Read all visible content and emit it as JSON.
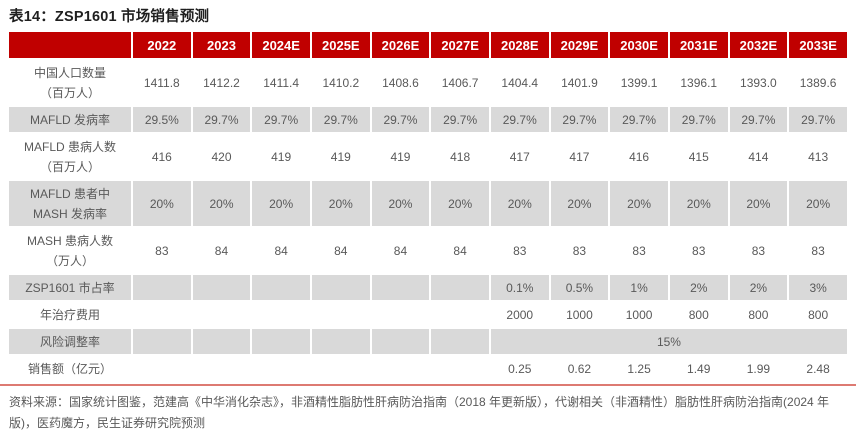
{
  "title": "表14：ZSP1601 市场销售预测",
  "colors": {
    "header_bg": "#c00000",
    "band_bg": "#d9d9d9",
    "cell_text": "#595959",
    "title_text": "#1f1f1f",
    "bottom_rule": "#dd7a72"
  },
  "chart_data": {
    "type": "table",
    "title": "表14：ZSP1601 市场销售预测",
    "categories": [
      "2022",
      "2023",
      "2024E",
      "2025E",
      "2026E",
      "2027E",
      "2028E",
      "2029E",
      "2030E",
      "2031E",
      "2032E",
      "2033E"
    ],
    "series": [
      {
        "name": "中国人口数量（百万人）",
        "values": [
          1411.8,
          1412.2,
          1411.4,
          1410.2,
          1408.6,
          1406.7,
          1404.4,
          1401.9,
          1399.1,
          1396.1,
          1393.0,
          1389.6
        ]
      },
      {
        "name": "MAFLD 发病率",
        "values": [
          "29.5%",
          "29.7%",
          "29.7%",
          "29.7%",
          "29.7%",
          "29.7%",
          "29.7%",
          "29.7%",
          "29.7%",
          "29.7%",
          "29.7%",
          "29.7%"
        ]
      },
      {
        "name": "MAFLD 患病人数（百万人）",
        "values": [
          416,
          420,
          419,
          419,
          419,
          418,
          417,
          417,
          416,
          415,
          414,
          413
        ]
      },
      {
        "name": "MAFLD 患者中 MASH 发病率",
        "values": [
          "20%",
          "20%",
          "20%",
          "20%",
          "20%",
          "20%",
          "20%",
          "20%",
          "20%",
          "20%",
          "20%",
          "20%"
        ]
      },
      {
        "name": "MASH 患病人数（万人）",
        "values": [
          83,
          84,
          84,
          84,
          84,
          84,
          83,
          83,
          83,
          83,
          83,
          83
        ]
      },
      {
        "name": "ZSP1601 市占率",
        "values": [
          "",
          "",
          "",
          "",
          "",
          "",
          "0.1%",
          "0.5%",
          "1%",
          "2%",
          "2%",
          "3%"
        ]
      },
      {
        "name": "年治疗费用",
        "values": [
          "",
          "",
          "",
          "",
          "",
          "",
          2000,
          1000,
          1000,
          800,
          800,
          800
        ]
      },
      {
        "name": "风险调整率",
        "values": [
          "",
          "",
          "",
          "",
          "",
          "",
          "15%",
          "15%",
          "15%",
          "15%",
          "15%",
          "15%"
        ]
      },
      {
        "name": "销售额（亿元）",
        "values": [
          "",
          "",
          "",
          "",
          "",
          "",
          0.25,
          0.62,
          1.25,
          1.49,
          1.99,
          2.48
        ]
      }
    ]
  },
  "table": {
    "corner_label": "",
    "years": [
      "2022",
      "2023",
      "2024E",
      "2025E",
      "2026E",
      "2027E",
      "2028E",
      "2029E",
      "2030E",
      "2031E",
      "2032E",
      "2033E"
    ],
    "rows": [
      {
        "label_lines": [
          "中国人口数量",
          "（百万人）"
        ],
        "band": false,
        "values": [
          "1411.8",
          "1412.2",
          "1411.4",
          "1410.2",
          "1408.6",
          "1406.7",
          "1404.4",
          "1401.9",
          "1399.1",
          "1396.1",
          "1393.0",
          "1389.6"
        ]
      },
      {
        "label_lines": [
          "MAFLD 发病率"
        ],
        "band": true,
        "values": [
          "29.5%",
          "29.7%",
          "29.7%",
          "29.7%",
          "29.7%",
          "29.7%",
          "29.7%",
          "29.7%",
          "29.7%",
          "29.7%",
          "29.7%",
          "29.7%"
        ]
      },
      {
        "label_lines": [
          "MAFLD 患病人数",
          "（百万人）"
        ],
        "band": false,
        "values": [
          "416",
          "420",
          "419",
          "419",
          "419",
          "418",
          "417",
          "417",
          "416",
          "415",
          "414",
          "413"
        ]
      },
      {
        "label_lines": [
          "MAFLD 患者中",
          "MASH 发病率"
        ],
        "band": true,
        "values": [
          "20%",
          "20%",
          "20%",
          "20%",
          "20%",
          "20%",
          "20%",
          "20%",
          "20%",
          "20%",
          "20%",
          "20%"
        ]
      },
      {
        "label_lines": [
          "MASH 患病人数",
          "（万人）"
        ],
        "band": false,
        "values": [
          "83",
          "84",
          "84",
          "84",
          "84",
          "84",
          "83",
          "83",
          "83",
          "83",
          "83",
          "83"
        ]
      },
      {
        "label_lines": [
          "ZSP1601 市占率"
        ],
        "band": true,
        "values": [
          "",
          "",
          "",
          "",
          "",
          "",
          "0.1%",
          "0.5%",
          "1%",
          "2%",
          "2%",
          "3%"
        ]
      },
      {
        "label_lines": [
          "年治疗费用"
        ],
        "band": false,
        "values": [
          "",
          "",
          "",
          "",
          "",
          "",
          "2000",
          "1000",
          "1000",
          "800",
          "800",
          "800"
        ]
      },
      {
        "label_lines": [
          "风险调整率"
        ],
        "band": true,
        "values": [
          "",
          "",
          "",
          "",
          "",
          ""
        ],
        "merged": {
          "start": 6,
          "span": 6,
          "value": "15%"
        }
      },
      {
        "label_lines": [
          "销售额（亿元）"
        ],
        "band": false,
        "values": [
          "",
          "",
          "",
          "",
          "",
          "",
          "0.25",
          "0.62",
          "1.25",
          "1.49",
          "1.99",
          "2.48"
        ]
      }
    ]
  },
  "source": {
    "line1": "资料来源：国家统计图鉴，范建高《中华消化杂志》，非酒精性脂肪性肝病防治指南（2018 年更新版），代谢相关（非酒精性）脂肪性肝病防治指南(2024 年",
    "line2": "版)，医药魔方，民生证券研究院预测"
  }
}
